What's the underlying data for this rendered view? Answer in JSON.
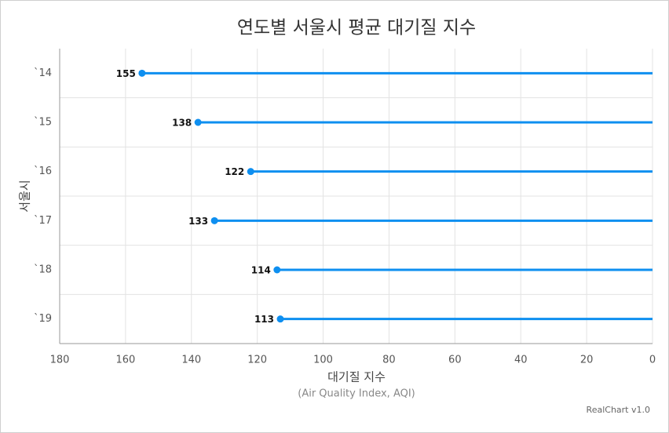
{
  "chart_data": {
    "type": "lollipop",
    "title": "연도별 서울시 평균 대기질 지수",
    "categories": [
      "`14",
      "`15",
      "`16",
      "`17",
      "`18",
      "`19"
    ],
    "values": [
      155,
      138,
      122,
      133,
      114,
      113
    ],
    "color": "#0e8ff0",
    "y_axis_title": "서울시",
    "x_axis_title": "대기질 지수",
    "x_axis_subtitle": "(Air Quality Index, AQI)",
    "xlim": [
      180,
      0
    ],
    "xticks": [
      180,
      160,
      140,
      120,
      100,
      80,
      60,
      40,
      20,
      0
    ],
    "grid": true,
    "credit": "RealChart v1.0"
  }
}
